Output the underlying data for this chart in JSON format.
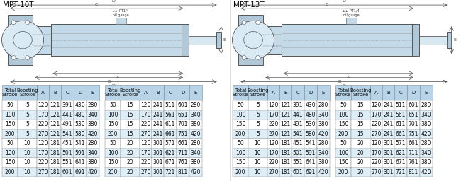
{
  "title_left": "MPT-10T",
  "title_right": "MPT-13T",
  "bg_color": "#ffffff",
  "table_header_bg": "#b8d4e8",
  "table_row_bg1": "#ffffff",
  "table_row_bg2": "#ddeef8",
  "table_border": "#888888",
  "header_cols": [
    "Total\nStroke",
    "Boosting\nStroke",
    "A",
    "B",
    "C",
    "D",
    "E"
  ],
  "tables": [
    {
      "label": "MPT-10T table1",
      "rows": [
        [
          50,
          5,
          120,
          121,
          391,
          430,
          280
        ],
        [
          100,
          5,
          170,
          121,
          441,
          480,
          340
        ],
        [
          150,
          5,
          220,
          121,
          491,
          530,
          380
        ],
        [
          200,
          5,
          270,
          121,
          541,
          580,
          420
        ],
        [
          50,
          10,
          120,
          181,
          451,
          541,
          280
        ],
        [
          100,
          10,
          170,
          181,
          501,
          591,
          340
        ],
        [
          150,
          10,
          220,
          181,
          551,
          641,
          380
        ],
        [
          200,
          10,
          270,
          181,
          601,
          691,
          420
        ]
      ]
    },
    {
      "label": "MPT-10T table2",
      "rows": [
        [
          50,
          15,
          120,
          241,
          511,
          601,
          280
        ],
        [
          100,
          15,
          170,
          241,
          561,
          651,
          340
        ],
        [
          150,
          15,
          220,
          241,
          611,
          701,
          380
        ],
        [
          200,
          15,
          270,
          241,
          661,
          751,
          420
        ],
        [
          50,
          20,
          120,
          301,
          571,
          661,
          280
        ],
        [
          100,
          20,
          170,
          301,
          621,
          711,
          340
        ],
        [
          150,
          20,
          220,
          301,
          671,
          761,
          380
        ],
        [
          200,
          20,
          270,
          301,
          721,
          811,
          420
        ]
      ]
    },
    {
      "label": "MPT-13T table1",
      "rows": [
        [
          50,
          5,
          120,
          121,
          391,
          430,
          280
        ],
        [
          100,
          5,
          170,
          121,
          441,
          480,
          340
        ],
        [
          150,
          5,
          220,
          121,
          491,
          530,
          380
        ],
        [
          200,
          5,
          270,
          121,
          541,
          580,
          420
        ],
        [
          50,
          10,
          120,
          181,
          451,
          541,
          280
        ],
        [
          100,
          10,
          170,
          181,
          501,
          591,
          340
        ],
        [
          150,
          10,
          220,
          181,
          551,
          641,
          380
        ],
        [
          200,
          10,
          270,
          181,
          601,
          691,
          420
        ]
      ]
    },
    {
      "label": "MPT-13T table2",
      "rows": [
        [
          50,
          15,
          120,
          241,
          511,
          601,
          280
        ],
        [
          100,
          15,
          170,
          241,
          561,
          651,
          340
        ],
        [
          150,
          15,
          220,
          241,
          611,
          701,
          380
        ],
        [
          200,
          15,
          270,
          241,
          661,
          751,
          420
        ],
        [
          50,
          20,
          120,
          301,
          571,
          661,
          280
        ],
        [
          100,
          20,
          170,
          301,
          621,
          711,
          340
        ],
        [
          150,
          20,
          220,
          301,
          671,
          761,
          380
        ],
        [
          200,
          20,
          270,
          301,
          721,
          811,
          420
        ]
      ]
    }
  ],
  "font_size_header": 5.0,
  "font_size_data": 5.5,
  "font_size_title": 7.5,
  "line_color": "#555555",
  "body_fill": "#c5dae8",
  "rod_fill": "#d8e8f0",
  "flange_fill": "#b0c8d8",
  "circle_fill": "#daeaf5",
  "dim_line_color": "#444444",
  "annotation_color": "#333333"
}
